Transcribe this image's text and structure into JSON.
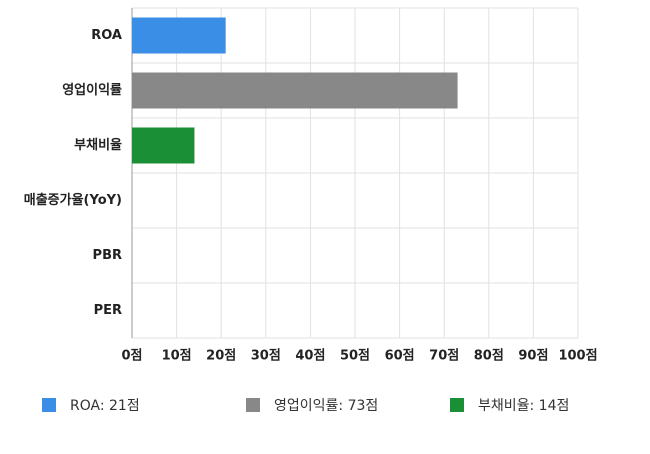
{
  "chart_data": {
    "type": "bar",
    "orientation": "horizontal",
    "categories": [
      "ROA",
      "영업이익률",
      "부채비율",
      "매출증가율(YoY)",
      "PBR",
      "PER"
    ],
    "values": [
      21,
      73,
      14,
      0,
      0,
      0
    ],
    "colors": [
      "#3a8ee6",
      "#888888",
      "#1a8f35",
      "#3a8ee6",
      "#3a8ee6",
      "#3a8ee6"
    ],
    "xlim": [
      0,
      100
    ],
    "xticks": [
      {
        "value": 0,
        "label": "0점"
      },
      {
        "value": 10,
        "label": "10점"
      },
      {
        "value": 20,
        "label": "20점"
      },
      {
        "value": 30,
        "label": "30점"
      },
      {
        "value": 40,
        "label": "40점"
      },
      {
        "value": 50,
        "label": "50점"
      },
      {
        "value": 60,
        "label": "60점"
      },
      {
        "value": 70,
        "label": "70점"
      },
      {
        "value": 80,
        "label": "80점"
      },
      {
        "value": 90,
        "label": "90점"
      },
      {
        "value": 100,
        "label": "100점"
      }
    ],
    "grid": true,
    "legend": [
      {
        "label": "ROA: 21점",
        "color": "#3a8ee6"
      },
      {
        "label": "영업이익률: 73점",
        "color": "#888888"
      },
      {
        "label": "부채비율: 14점",
        "color": "#1a8f35"
      }
    ]
  }
}
